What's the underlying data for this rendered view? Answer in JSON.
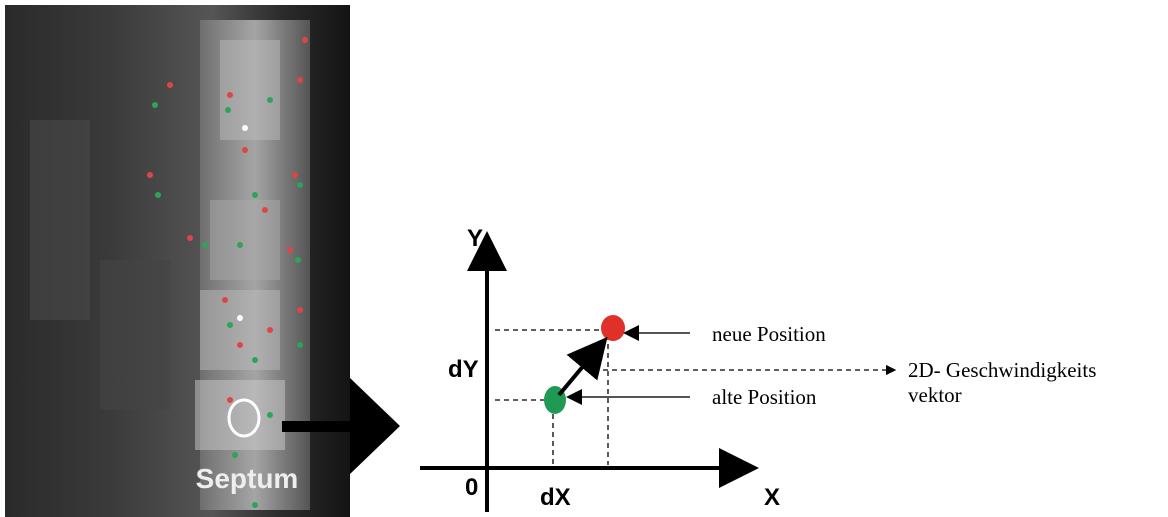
{
  "image": {
    "label": "Septum"
  },
  "diagram": {
    "y_axis": "Y",
    "x_axis": "X",
    "origin": "0",
    "dx": "dX",
    "dy": "dY",
    "new_position": "neue Position",
    "old_position": "alte Position",
    "vector_line1": "2D- Geschwindigkeits",
    "vector_line2": "vektor"
  }
}
